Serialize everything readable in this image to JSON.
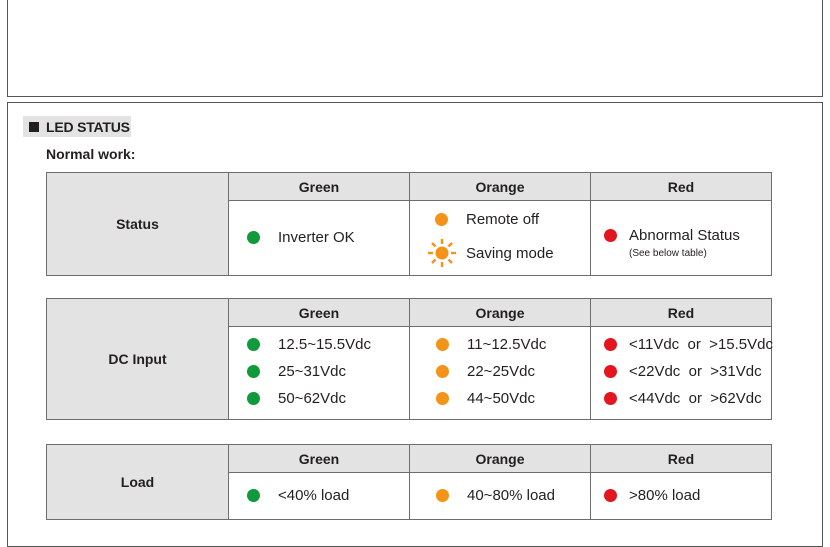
{
  "section": {
    "title": "LED STATUS",
    "subtitle": "Normal work:"
  },
  "headers": {
    "green": "Green",
    "orange": "Orange",
    "red": "Red"
  },
  "colors": {
    "green": "#109a3c",
    "orange": "#f39317",
    "red": "#e3151f",
    "header_bg": "#e3e3e3"
  },
  "status": {
    "label": "Status",
    "green": [
      "Inverter OK"
    ],
    "orange": [
      "Remote off",
      "Saving mode"
    ],
    "red": [
      "Abnormal Status"
    ],
    "red_note": "(See below table)"
  },
  "dc_input": {
    "label": "DC Input",
    "green": [
      "12.5~15.5Vdc",
      "25~31Vdc",
      "50~62Vdc"
    ],
    "orange": [
      "11~12.5Vdc",
      "22~25Vdc",
      "44~50Vdc"
    ],
    "red": [
      "<11Vdc  or  >15.5Vdc",
      "<22Vdc  or  >31Vdc",
      "<44Vdc  or  >62Vdc"
    ]
  },
  "load": {
    "label": "Load",
    "green": [
      "<40% load"
    ],
    "orange": [
      "40~80% load"
    ],
    "red": [
      ">80% load"
    ]
  }
}
